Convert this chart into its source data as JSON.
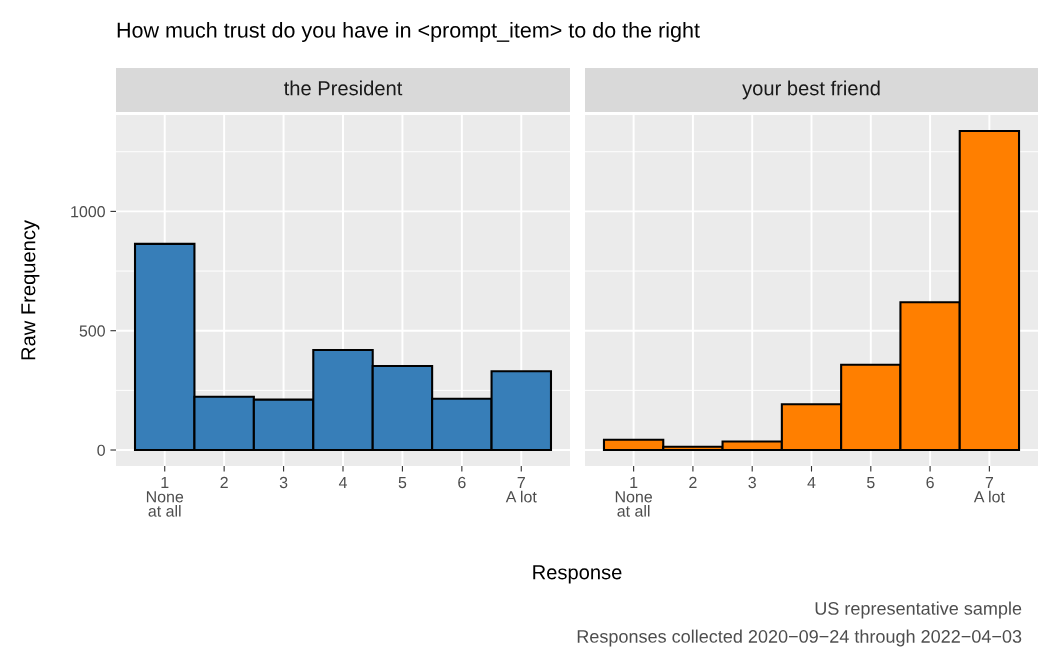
{
  "chart_data": [
    {
      "type": "bar",
      "title": "the President",
      "ylabel": "Raw Frequency",
      "xlabel": "Response",
      "categories": [
        "1\nNone\nat all",
        "2",
        "3",
        "4",
        "5",
        "6",
        "7\nA lot"
      ],
      "series": [
        {
          "color": "#377eb8",
          "values": [
            864,
            223,
            211,
            419,
            352,
            215,
            330
          ]
        }
      ],
      "ylim": [
        -67,
        1404
      ],
      "yticks": [
        0,
        500,
        1000
      ],
      "grid": true,
      "annotations": [
        "How much trust do you have in <prompt_item> to do the right",
        "US representative sample",
        "Responses collected 2020−09−24 through 2022−04−03"
      ]
    },
    {
      "type": "bar",
      "title": "your best friend",
      "categories": [
        "1\nNone\nat all",
        "2",
        "3",
        "4",
        "5",
        "6",
        "7\nA lot"
      ],
      "series": [
        {
          "color": "#ff7f00",
          "values": [
            43,
            14,
            36,
            192,
            357,
            619,
            1337
          ]
        }
      ],
      "ylim": [
        -67,
        1404
      ],
      "yticks": [
        0,
        500,
        1000
      ],
      "grid": true,
      "tick_labels": "x"
    }
  ]
}
